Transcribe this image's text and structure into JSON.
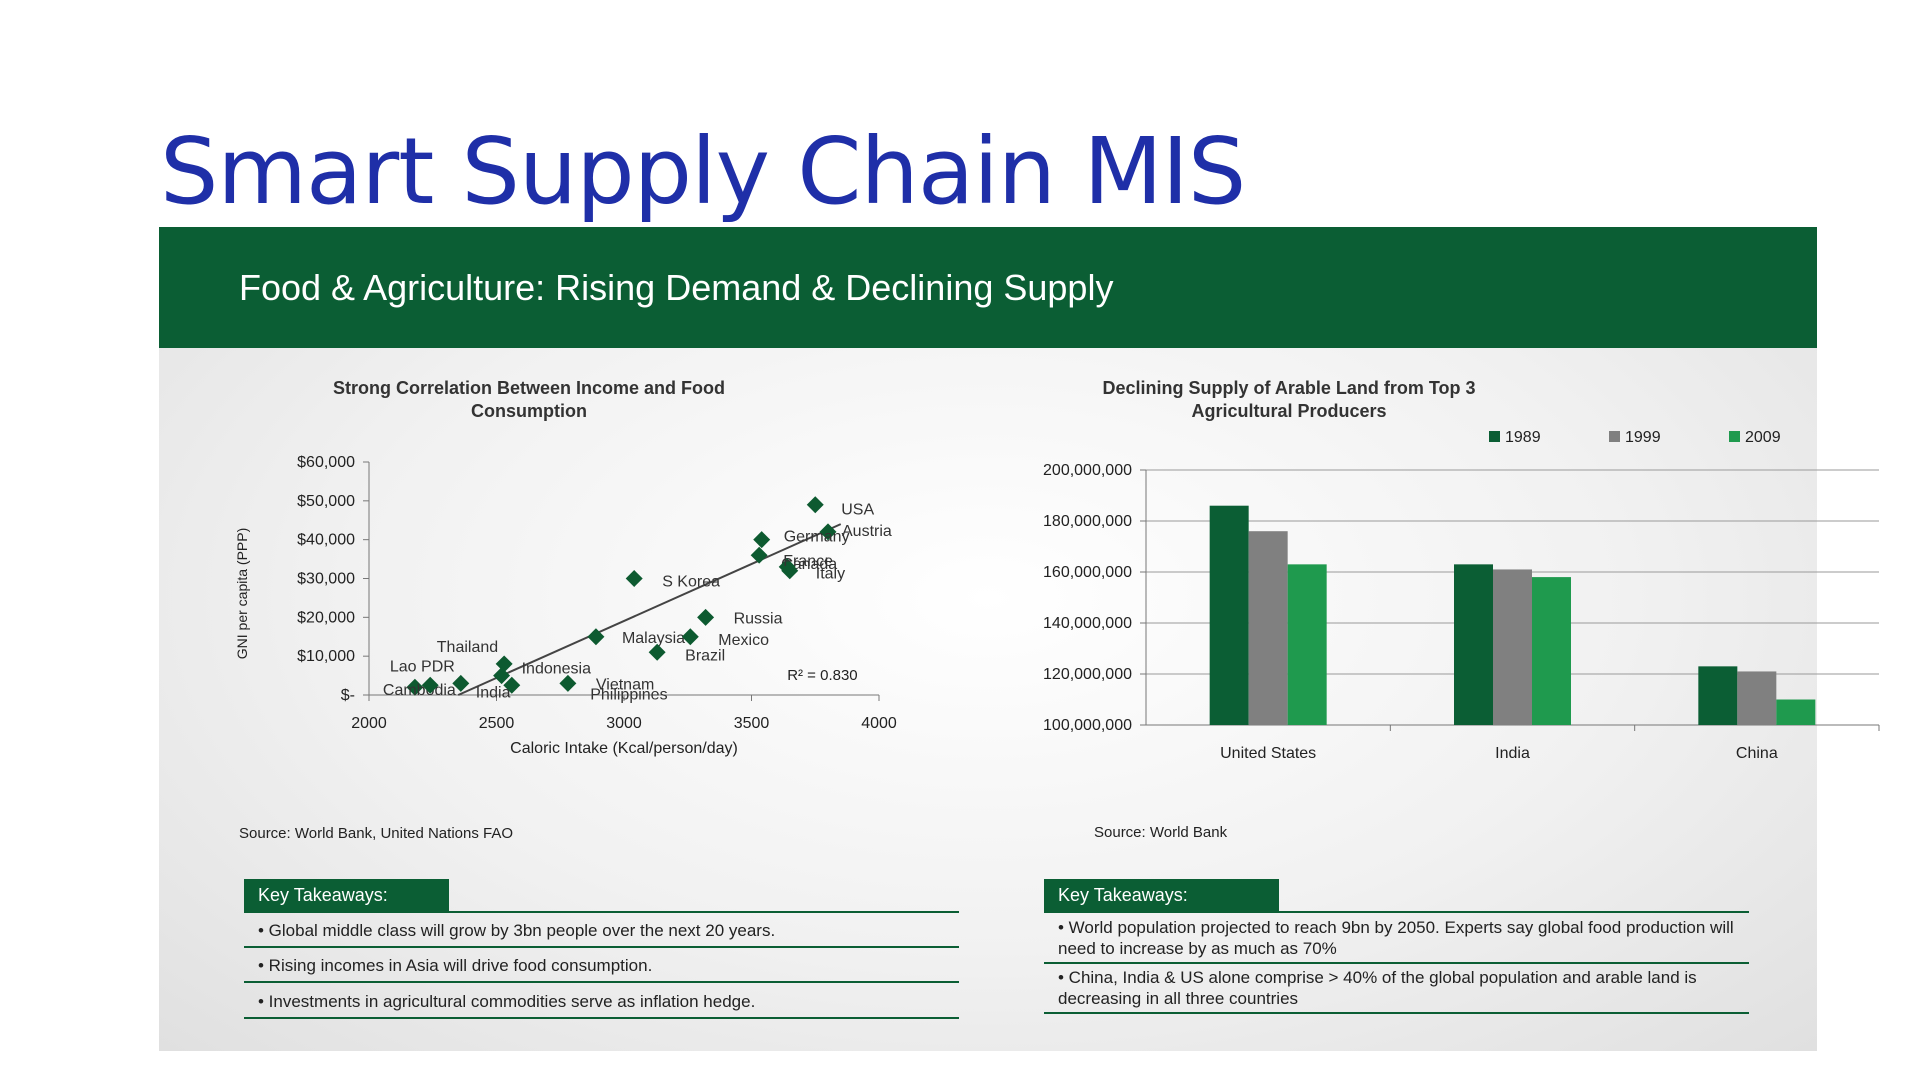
{
  "slide": {
    "title": "Smart Supply Chain MIS"
  },
  "banner": {
    "title": "Food & Agriculture: Rising Demand & Declining Supply"
  },
  "left": {
    "source": "Source: World Bank, United Nations FAO",
    "takeaways": {
      "header": "Key Takeaways:",
      "items": [
        "• Global middle class will grow by 3bn people over the next 20 years.",
        "• Rising incomes in Asia will drive food consumption.",
        "• Investments in agricultural commodities serve as inflation hedge."
      ]
    }
  },
  "right": {
    "source": "Source: World Bank",
    "takeaways": {
      "header": "Key Takeaways:",
      "items": [
        "• World population projected to reach 9bn by 2050. Experts say global food production will need to increase by as much as 70%",
        "• China, India & US alone comprise > 40% of the global population and arable land is decreasing in all three countries"
      ]
    }
  },
  "chart_data": [
    {
      "type": "scatter",
      "title": "Strong Correlation Between Income and Food Consumption",
      "xlabel": "Caloric Intake (Kcal/person/day)",
      "ylabel": "GNI per capita (PPP)",
      "xlim": [
        2000,
        4000
      ],
      "ylim": [
        0,
        60000
      ],
      "xticks": [
        "2000",
        "2500",
        "3000",
        "3500",
        "4000"
      ],
      "yticks": [
        "$-",
        "$10,000",
        "$20,000",
        "$30,000",
        "$40,000",
        "$50,000",
        "$60,000"
      ],
      "annotation": "R² = 0.830",
      "trendline": {
        "x": [
          2350,
          3850
        ],
        "y": [
          0,
          44000
        ]
      },
      "points": [
        {
          "label": "USA",
          "x": 3750,
          "y": 49000
        },
        {
          "label": "Austria",
          "x": 3800,
          "y": 42000
        },
        {
          "label": "Germany",
          "x": 3540,
          "y": 40000
        },
        {
          "label": "Canada",
          "x": 3530,
          "y": 36000
        },
        {
          "label": "France",
          "x": 3640,
          "y": 33000
        },
        {
          "label": "Italy",
          "x": 3650,
          "y": 32000
        },
        {
          "label": "S Korea",
          "x": 3040,
          "y": 30000
        },
        {
          "label": "Russia",
          "x": 3320,
          "y": 20000
        },
        {
          "label": "Malaysia",
          "x": 2890,
          "y": 15000
        },
        {
          "label": "Mexico",
          "x": 3260,
          "y": 15000
        },
        {
          "label": "Brazil",
          "x": 3130,
          "y": 11000
        },
        {
          "label": "Thailand",
          "x": 2530,
          "y": 8000
        },
        {
          "label": "Indonesia",
          "x": 2520,
          "y": 5000
        },
        {
          "label": "Lao PDR",
          "x": 2360,
          "y": 3000
        },
        {
          "label": "Cambodia",
          "x": 2180,
          "y": 2000
        },
        {
          "label": "India",
          "x": 2560,
          "y": 2500
        },
        {
          "label": "Vietnam",
          "x": 2780,
          "y": 3000
        },
        {
          "label": "Philippines",
          "x": 2240,
          "y": 2500
        }
      ]
    },
    {
      "type": "bar",
      "title": "Declining Supply of Arable Land from Top 3 Agricultural Producers",
      "categories": [
        "United States",
        "India",
        "China"
      ],
      "series": [
        {
          "name": "1989",
          "color": "#0b5e34",
          "values": [
            186000000,
            163000000,
            123000000
          ]
        },
        {
          "name": "1999",
          "color": "#808080",
          "values": [
            176000000,
            161000000,
            121000000
          ]
        },
        {
          "name": "2009",
          "color": "#1f9a4e",
          "values": [
            163000000,
            158000000,
            110000000
          ]
        }
      ],
      "ylim": [
        100000000,
        200000000
      ],
      "yticks": [
        "100,000,000",
        "120,000,000",
        "140,000,000",
        "160,000,000",
        "180,000,000",
        "200,000,000"
      ],
      "grid": true,
      "legend": "top"
    }
  ]
}
